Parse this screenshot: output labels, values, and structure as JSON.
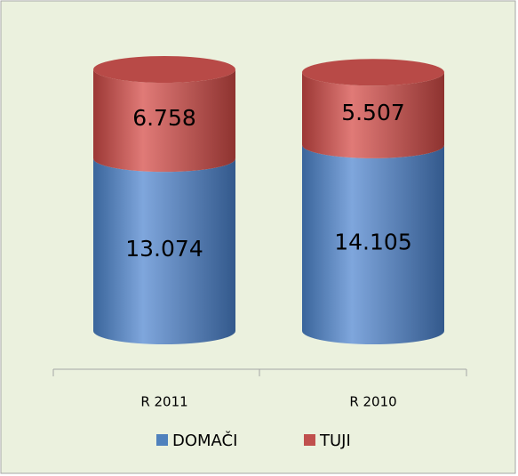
{
  "chart_data": {
    "type": "stacked-cylinder",
    "categories": [
      "R 2011",
      "R 2010"
    ],
    "series": [
      {
        "name": "DOMAČI",
        "color": "#4f81bd",
        "values": [
          13074,
          14105
        ],
        "value_labels": [
          "13.074",
          "14.105"
        ]
      },
      {
        "name": "TUJI",
        "color": "#c0504d",
        "values": [
          6758,
          5507
        ],
        "value_labels": [
          "6.758",
          "5.507"
        ]
      }
    ],
    "legend": "bottom"
  }
}
